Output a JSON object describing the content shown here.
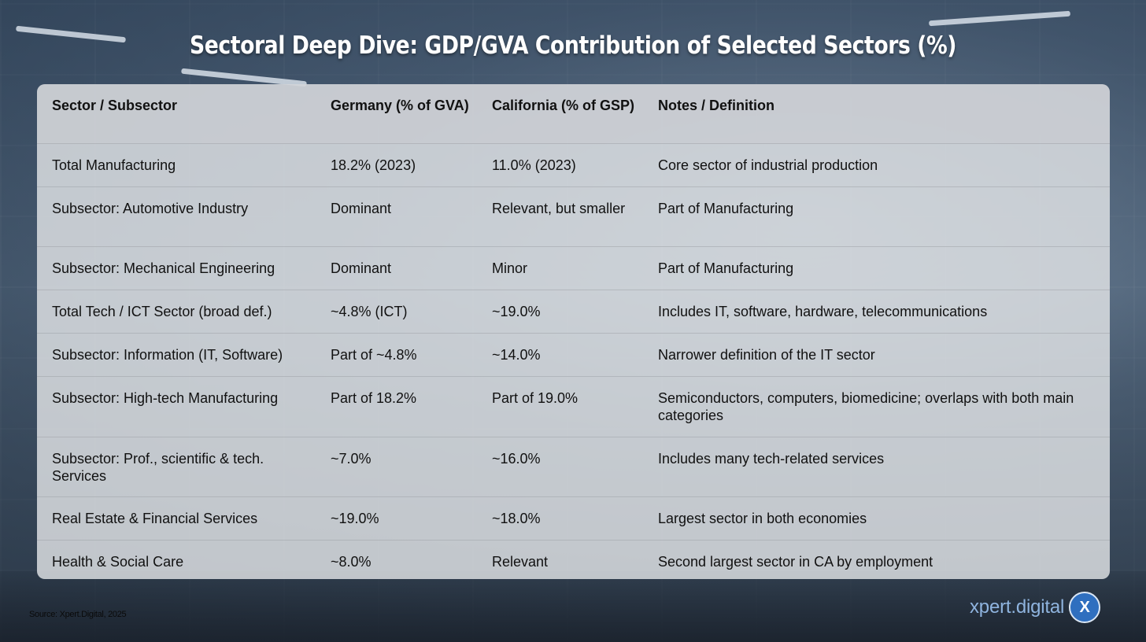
{
  "title": "Sectoral Deep Dive: GDP/GVA Contribution of Selected Sectors (%)",
  "table": {
    "headers": [
      "Sector / Subsector",
      "Germany (% of GVA)",
      "California (% of GSP)",
      "Notes / Definition"
    ],
    "rows": [
      [
        "Total Manufacturing",
        "18.2% (2023)",
        "11.0% (2023)",
        "Core sector of industrial production"
      ],
      [
        "Subsector: Automotive Industry",
        "Dominant",
        "Relevant, but smaller",
        "Part of Manufacturing"
      ],
      [
        "Subsector: Mechanical Engineering",
        "Dominant",
        "Minor",
        "Part of Manufacturing"
      ],
      [
        "Total Tech / ICT Sector (broad def.)",
        "~4.8% (ICT)",
        "~19.0%",
        "Includes IT, software, hardware, telecommunications"
      ],
      [
        "Subsector: Information (IT, Software)",
        "Part of ~4.8%",
        "~14.0%",
        "Narrower definition of the IT sector"
      ],
      [
        "Subsector: High-tech Manufacturing",
        "Part of 18.2%",
        "Part of 19.0%",
        "Semiconductors, computers, biomedicine; overlaps with both main categories"
      ],
      [
        "Subsector: Prof., scientific & tech. Services",
        "~7.0%",
        "~16.0%",
        "Includes many tech-related services"
      ],
      [
        "Real Estate & Financial Services",
        "~19.0%",
        "~18.0%",
        "Largest sector in both economies"
      ],
      [
        "Health & Social Care",
        "~8.0%",
        "Relevant",
        "Second largest sector in CA by employment"
      ]
    ]
  },
  "source": "Source: Xpert.Digital, 2025",
  "logo": {
    "text": "xpert.digital",
    "badge": "X",
    "accent": "#2f6fbf"
  }
}
